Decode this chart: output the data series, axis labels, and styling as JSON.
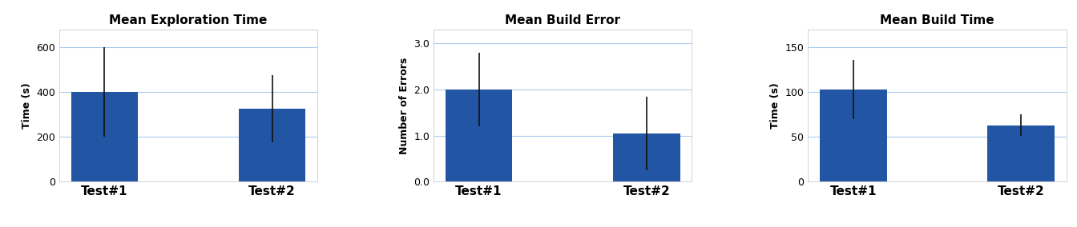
{
  "charts": [
    {
      "title": "Mean Exploration Time",
      "ylabel": "Time (s)",
      "categories": [
        "Test#1",
        "Test#2"
      ],
      "values": [
        400,
        325
      ],
      "errors": [
        200,
        150
      ],
      "ylim": [
        0,
        680
      ],
      "yticks": [
        0,
        200,
        400,
        600
      ]
    },
    {
      "title": "Mean Build Error",
      "ylabel": "Number of Errors",
      "categories": [
        "Test#1",
        "Test#2"
      ],
      "values": [
        2.0,
        1.05
      ],
      "errors": [
        0.8,
        0.8
      ],
      "ylim": [
        0,
        3.3
      ],
      "yticks": [
        0.0,
        1.0,
        2.0,
        3.0
      ]
    },
    {
      "title": "Mean Build Time",
      "ylabel": "Time (s)",
      "categories": [
        "Test#1",
        "Test#2"
      ],
      "values": [
        103,
        63
      ],
      "errors": [
        33,
        12
      ],
      "ylim": [
        0,
        170
      ],
      "yticks": [
        0,
        50,
        100,
        150
      ]
    }
  ],
  "bar_color": "#2255a4",
  "bar_width": 0.4,
  "error_color": "#111111",
  "fig_bg_color": "#ffffff",
  "axes_bg_color": "#ffffff",
  "grid_color": "#aaccee",
  "title_fontsize": 11,
  "label_fontsize": 9,
  "tick_fontsize": 9,
  "xtick_fontsize": 11
}
